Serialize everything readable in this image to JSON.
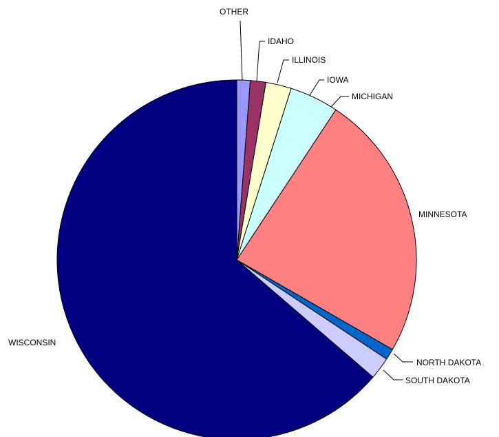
{
  "chart_data": {
    "type": "pie",
    "categories": [
      "OTHER",
      "IDAHO",
      "ILLINOIS",
      "IOWA",
      "MICHIGAN",
      "MINNESOTA",
      "NORTH DAKOTA",
      "SOUTH DAKOTA",
      "WISCONSIN"
    ],
    "values": [
      1.2,
      1.4,
      2.3,
      4.4,
      0.0,
      24.0,
      1.0,
      2.0,
      63.7
    ],
    "unit": "percent",
    "start": "12 o'clock",
    "direction": "clockwise",
    "colors": [
      "#9999FF",
      "#993366",
      "#FFFFCC",
      "#CCFFFF",
      "#660066",
      "#FF8080",
      "#0066CC",
      "#CCCCFF",
      "#000080"
    ],
    "title": "",
    "legend": "none"
  }
}
